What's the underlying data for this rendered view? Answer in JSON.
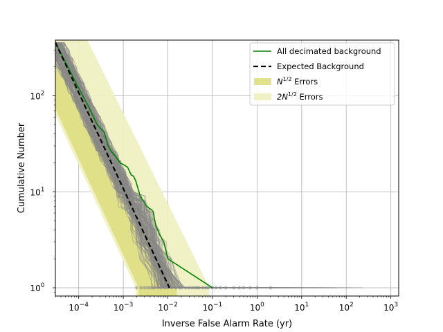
{
  "chart_data": {
    "type": "line",
    "xlabel": "Inverse False Alarm Rate (yr)",
    "ylabel": "Cumulative Number",
    "xscale": "log",
    "yscale": "log",
    "xlim": [
      3e-05,
      1500
    ],
    "ylim": [
      0.82,
      380
    ],
    "grid": true,
    "legend_position": "top-right",
    "x_ticks": [
      {
        "value": 0.0001,
        "base": "10",
        "exp": "−4"
      },
      {
        "value": 0.001,
        "base": "10",
        "exp": "−3"
      },
      {
        "value": 0.01,
        "base": "10",
        "exp": "−2"
      },
      {
        "value": 0.1,
        "base": "10",
        "exp": "−1"
      },
      {
        "value": 1,
        "base": "10",
        "exp": "0"
      },
      {
        "value": 10,
        "base": "10",
        "exp": "1"
      },
      {
        "value": 100,
        "base": "10",
        "exp": "2"
      },
      {
        "value": 1000,
        "base": "10",
        "exp": "3"
      }
    ],
    "y_ticks": [
      {
        "value": 1,
        "base": "10",
        "exp": "0"
      },
      {
        "value": 10,
        "base": "10",
        "exp": "1"
      },
      {
        "value": 100,
        "base": "10",
        "exp": "2"
      }
    ],
    "colors": {
      "observed": "#008000",
      "expected": "#000000",
      "background_trials": "#888888",
      "error_1sigma": "#dede82",
      "error_2sigma": "#efefc0"
    },
    "legend": [
      {
        "label": "All decimated background",
        "kind": "line-solid",
        "color": "#008000"
      },
      {
        "label": "Expected Background",
        "kind": "line-dashed",
        "color": "#000000"
      },
      {
        "label_prefix": "N",
        "label_sup": "1/2",
        "label_suffix": " Errors",
        "kind": "patch",
        "color": "#dede82"
      },
      {
        "label_prefix": "2N",
        "label_sup": "1/2",
        "label_suffix": " Errors",
        "kind": "patch",
        "color": "#efefc0"
      }
    ],
    "series": [
      {
        "name": "All decimated background",
        "x": [
          3e-05,
          0.0001,
          0.00016,
          0.00026,
          0.00032,
          0.00037,
          0.00046,
          0.00055,
          0.0006,
          0.00085,
          0.00105,
          0.00125,
          0.0015,
          0.0017,
          0.0019,
          0.002,
          0.0024,
          0.0034,
          0.0043,
          0.0047,
          0.005,
          0.0053,
          0.0065,
          0.0081,
          0.01,
          0.1
        ],
        "y": [
          360,
          120,
          80,
          50,
          45,
          42,
          30,
          26,
          25,
          20,
          19,
          18,
          15,
          14.5,
          13,
          12,
          9,
          7,
          6.5,
          6.2,
          5.2,
          4.5,
          3.6,
          3,
          2,
          1
        ]
      },
      {
        "name": "Expected Background",
        "x": [
          3e-05,
          0.0108
        ],
        "y": [
          360,
          1
        ]
      }
    ],
    "background_trials": {
      "count": 120,
      "main_slope": 1,
      "tail_ifar_range": [
        0.01,
        380
      ],
      "final_points": [
        0.002,
        0.0025,
        0.003,
        0.0035,
        0.004,
        0.0045,
        0.005,
        0.006,
        0.007,
        0.0085,
        0.01,
        0.012,
        0.015,
        0.018,
        0.02,
        0.025,
        0.03,
        0.035,
        0.04,
        0.045,
        0.05,
        0.06,
        0.07,
        0.08,
        0.1,
        0.12,
        0.15,
        0.2,
        0.3,
        0.4,
        0.5,
        0.7,
        1.0,
        2.0
      ]
    },
    "error_bands": {
      "lower_1sigma_at_y1": 0.0022,
      "upper_1sigma_at_y1": 0.016,
      "lower_2sigma_at_y1": 0.0019,
      "upper_2sigma_at_y1": 0.085
    }
  }
}
